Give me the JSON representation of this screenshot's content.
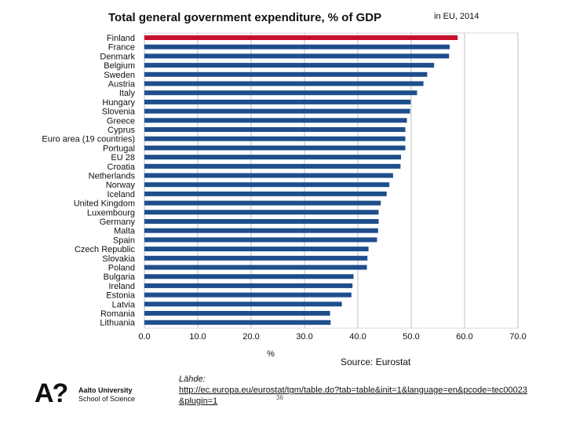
{
  "chart_data": {
    "type": "bar",
    "orientation": "horizontal",
    "title": "Total general government expenditure, % of GDP",
    "title_suffix": "in EU, 2014",
    "xlabel": "%",
    "xlim": [
      0,
      70
    ],
    "xticks": [
      "0.0",
      "10.0",
      "20.0",
      "30.0",
      "40.0",
      "50.0",
      "60.0",
      "70.0"
    ],
    "source": "Source: Eurostat",
    "categories": [
      "Finland",
      "France",
      "Denmark",
      "Belgium",
      "Sweden",
      "Austria",
      "Italy",
      "Hungary",
      "Slovenia",
      "Greece",
      "Cyprus",
      "Euro area (19 countries)",
      "Portugal",
      "EU 28",
      "Croatia",
      "Netherlands",
      "Norway",
      "Iceland",
      "United Kingdom",
      "Luxembourg",
      "Germany",
      "Malta",
      "Spain",
      "Czech Republic",
      "Slovakia",
      "Poland",
      "Bulgaria",
      "Ireland",
      "Estonia",
      "Latvia",
      "Romania",
      "Lithuania"
    ],
    "values": [
      58.7,
      57.2,
      57.1,
      54.3,
      53.0,
      52.3,
      51.1,
      49.9,
      49.8,
      49.2,
      48.9,
      48.9,
      48.9,
      48.1,
      48.0,
      46.6,
      45.9,
      45.4,
      44.3,
      43.9,
      43.9,
      43.8,
      43.6,
      42.0,
      41.8,
      41.7,
      39.2,
      39.0,
      38.8,
      37.0,
      34.8,
      34.9
    ],
    "highlight": "Finland",
    "colors": {
      "bar": "#1f4e8c",
      "highlight": "#c8102e",
      "grid": "#bfbfbf"
    }
  },
  "footer": {
    "logo_mark": "A?",
    "university": "Aalto University",
    "school": "School of Science",
    "lahde": "Lähde:",
    "link": "http://ec.europa.eu/eurostat/tgm/table.do?tab=table&init=1&language=en&pcode=tec00023&plugin=1",
    "page_number": "36"
  }
}
